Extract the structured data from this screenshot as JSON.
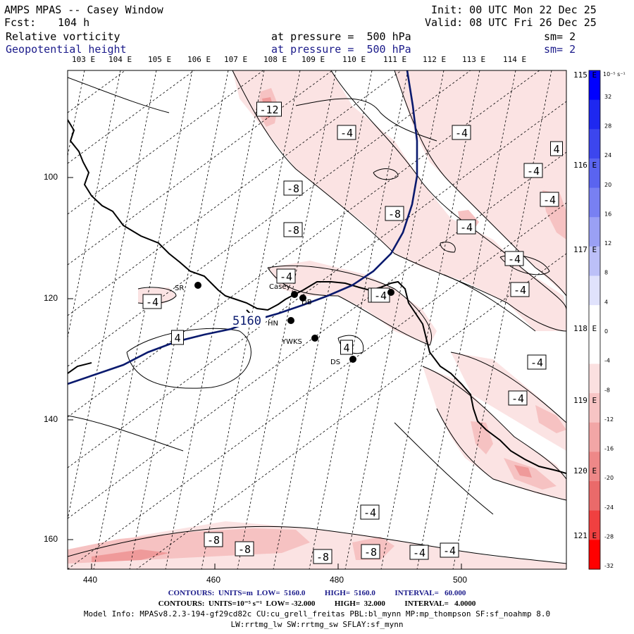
{
  "header": {
    "model": "AMPS MPAS -- Casey Window",
    "fcst_label": "Fcst:",
    "fcst_value": "104 h",
    "init": "Init: 00 UTC Mon 22 Dec 25",
    "valid": "Valid: 08 UTC Fri 26 Dec 25",
    "field1_name": "Relative vorticity",
    "field1_level": "at pressure =  500 hPa",
    "field1_sm": "sm= 2",
    "field2_name": "Geopotential height",
    "field2_level": "at pressure =  500 hPa",
    "field2_sm": "sm= 2"
  },
  "colors": {
    "height_contour": "#0a1a6e",
    "vort_contour": "#000000",
    "pos_scale_top": "#0000ff",
    "neg_scale_bottom": "#ff0000",
    "fill_weak_neg": "#fbe3e3",
    "fill_mid_neg": "#f6c2c2",
    "fill_strong_neg": "#ef9a9a"
  },
  "top_lon_labels": [
    "103 E",
    "104 E",
    "105 E",
    "106 E",
    "107 E",
    "108 E",
    "109 E",
    "110 E",
    "111 E",
    "112 E",
    "113 E",
    "114 E"
  ],
  "right_lon_labels": [
    "115 E",
    "116 E",
    "117 E",
    "118 E",
    "119 E",
    "120 E",
    "121 E"
  ],
  "x_ticks": [
    "440",
    "460",
    "480",
    "500"
  ],
  "y_ticks": [
    "100",
    "120",
    "140",
    "160"
  ],
  "colorbar": {
    "unit": "10⁻⁵ s⁻¹",
    "labels": [
      "32",
      "28",
      "24",
      "20",
      "16",
      "12",
      "8",
      "4",
      "0",
      "-4",
      "-8",
      "-12",
      "-16",
      "-20",
      "-24",
      "-28",
      "-32"
    ]
  },
  "stations": [
    "Casey",
    "DB",
    "SR",
    "HN",
    "YWKS",
    "DS"
  ],
  "height_label": "5160",
  "contour_labels": [
    "-12",
    "-4",
    "-4",
    "4",
    "-4",
    "-8",
    "-4",
    "-8",
    "-4",
    "-8",
    "-4",
    "-4",
    "-4",
    "-4",
    "-4",
    "4",
    "4",
    "-4",
    "-4",
    "-4",
    "-8",
    "-8",
    "-8",
    "-8",
    "-4",
    "-4",
    "-4"
  ],
  "footer": {
    "line1": "CONTOURS:  UNITS=m  LOW=  5160.0          HIGH=  5160.0          INTERVAL=   60.000",
    "line2": "CONTOURS:  UNITS=10⁻⁵ s⁻¹  LOW= -32.000          HIGH=  32.000          INTERVAL=   4.0000",
    "line3": "Model Info: MPASv8.2.3-194-gf29cd82c CU:cu_grell_freitas PBL:bl_mynn MP:mp_thompson SF:sf_noahmp 8.0",
    "line4": "LW:rrtmg_lw SW:rrtmg_sw SFLAY:sf_mynn"
  }
}
